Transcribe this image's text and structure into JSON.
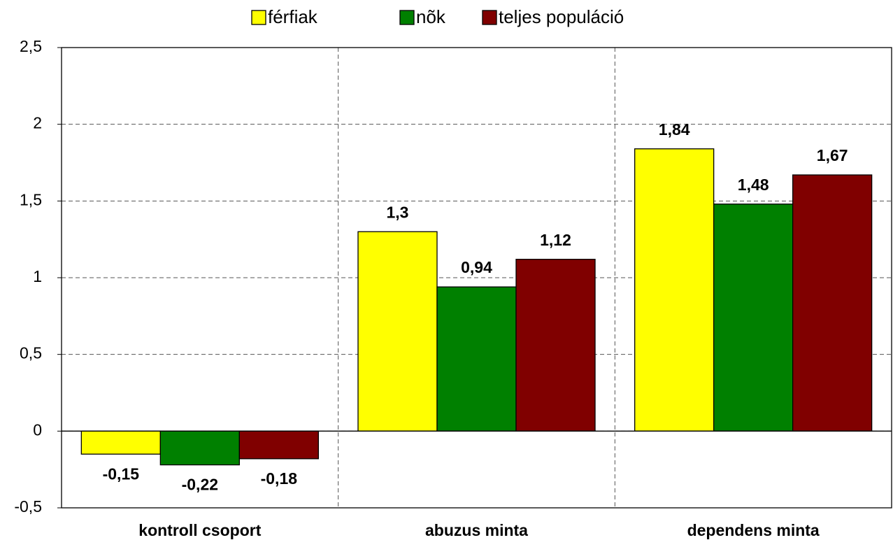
{
  "chart_data": {
    "type": "bar",
    "categories": [
      "kontroll csoport",
      "abuzus minta",
      "dependens minta"
    ],
    "series": [
      {
        "name": "férfiak",
        "color": "#ffff00",
        "values": [
          -0.15,
          1.3,
          1.84
        ],
        "value_labels": [
          "-0,15",
          "1,3",
          "1,84"
        ]
      },
      {
        "name": "nõk",
        "color": "#008000",
        "values": [
          -0.22,
          0.94,
          1.48
        ],
        "value_labels": [
          "-0,22",
          "0,94",
          "1,48"
        ]
      },
      {
        "name": "teljes populáció",
        "color": "#800000",
        "values": [
          -0.18,
          1.12,
          1.67
        ],
        "value_labels": [
          "-0,18",
          "1,12",
          "1,67"
        ]
      }
    ],
    "ylim": [
      -0.5,
      2.5
    ],
    "yticks": [
      {
        "value": -0.5,
        "label": "-0,5"
      },
      0,
      {
        "value": 0.5,
        "label": "0,5"
      },
      1,
      {
        "value": 1.5,
        "label": "1,5"
      },
      2,
      {
        "value": 2.5,
        "label": "2,5"
      }
    ],
    "grid": true,
    "legend": "top"
  }
}
